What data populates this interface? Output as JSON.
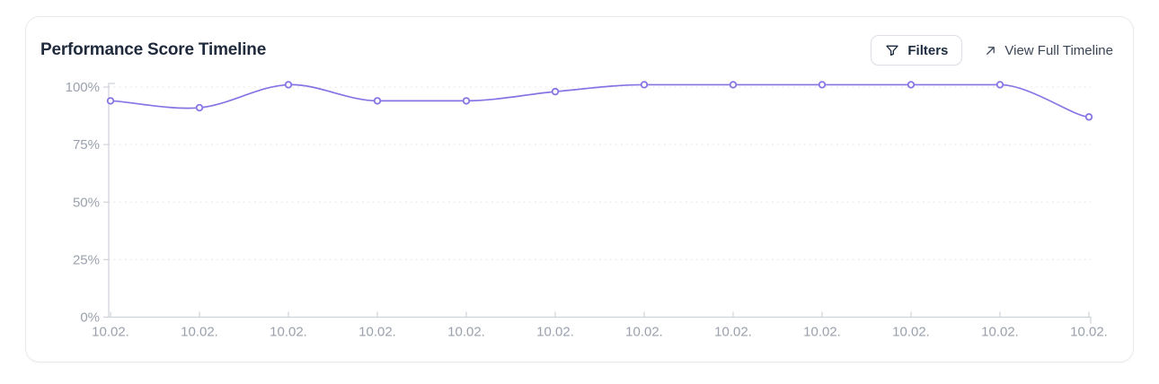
{
  "card": {
    "title": "Performance Score Timeline"
  },
  "toolbar": {
    "filters_label": "Filters",
    "view_full_label": "View Full Timeline"
  },
  "colors": {
    "line": "#8674e4",
    "marker_fill": "#ffffff",
    "grid": "#e2e5ea",
    "axis_line": "#ced3da",
    "axis_text": "#9aa1ad",
    "title_text": "#1f2a3c",
    "button_text": "#1d2b3e",
    "link_text": "#3a4556",
    "card_border": "#e8eaee"
  },
  "chart_data": {
    "type": "line",
    "title": "Performance Score Timeline",
    "x": [
      "10.02.",
      "10.02.",
      "10.02.",
      "10.02.",
      "10.02.",
      "10.02.",
      "10.02.",
      "10.02.",
      "10.02.",
      "10.02.",
      "10.02.",
      "10.02."
    ],
    "series": [
      {
        "name": "Performance Score",
        "values": [
          94,
          91,
          101,
          94,
          94,
          98,
          101,
          101,
          101,
          101,
          101,
          87
        ]
      }
    ],
    "y_ticks": [
      {
        "label": "0%",
        "value": 0
      },
      {
        "label": "25%",
        "value": 25
      },
      {
        "label": "50%",
        "value": 50
      },
      {
        "label": "75%",
        "value": 75
      },
      {
        "label": "100%",
        "value": 100
      }
    ],
    "ylim": [
      0,
      105
    ],
    "xlabel": "",
    "ylabel": "",
    "grid": "horizontal-dotted",
    "legend": "none",
    "marker": "hollow-circle",
    "smooth": true
  }
}
